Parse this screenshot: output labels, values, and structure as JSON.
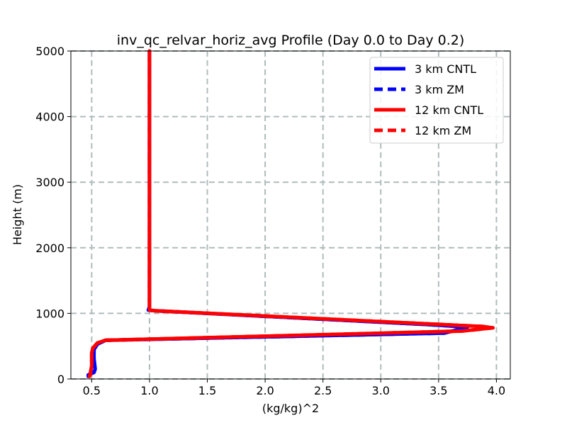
{
  "chart_data": {
    "type": "line",
    "title": "inv_qc_relvar_horiz_avg Profile (Day 0.0 to Day 0.2)",
    "xlabel": "(kg/kg)^2",
    "ylabel": "Height (m)",
    "xlim": [
      0.32,
      4.12
    ],
    "ylim": [
      0,
      5000
    ],
    "xticks": [
      0.5,
      1.0,
      1.5,
      2.0,
      2.5,
      3.0,
      3.5,
      4.0
    ],
    "xtick_labels": [
      "0.5",
      "1.0",
      "1.5",
      "2.0",
      "2.5",
      "3.0",
      "3.5",
      "4.0"
    ],
    "yticks": [
      0,
      1000,
      2000,
      3000,
      4000,
      5000
    ],
    "ytick_labels": [
      "0",
      "1000",
      "2000",
      "3000",
      "4000",
      "5000"
    ],
    "grid": true,
    "legend_position": "top-right",
    "series": [
      {
        "name": "3 km CNTL",
        "color": "#0000ff",
        "style": "solid",
        "points": [
          [
            0.47,
            40
          ],
          [
            0.47,
            60
          ],
          [
            0.52,
            100
          ],
          [
            0.53,
            150
          ],
          [
            0.52,
            300
          ],
          [
            0.52,
            450
          ],
          [
            0.55,
            530
          ],
          [
            0.62,
            590
          ],
          [
            3.55,
            700
          ],
          [
            3.75,
            790
          ],
          [
            3.4,
            830
          ],
          [
            1.05,
            1040
          ],
          [
            0.99,
            1050
          ],
          [
            1.0,
            1100
          ],
          [
            1.0,
            2000
          ],
          [
            1.0,
            3000
          ],
          [
            1.0,
            4000
          ],
          [
            1.0,
            5000
          ]
        ]
      },
      {
        "name": "3 km ZM",
        "color": "#0000ff",
        "style": "dashed",
        "points": [
          [
            0.47,
            40
          ],
          [
            0.47,
            60
          ],
          [
            0.52,
            100
          ],
          [
            0.53,
            150
          ],
          [
            0.52,
            300
          ],
          [
            0.52,
            450
          ],
          [
            0.55,
            530
          ],
          [
            0.62,
            590
          ],
          [
            3.55,
            700
          ],
          [
            3.75,
            790
          ],
          [
            3.4,
            830
          ],
          [
            1.05,
            1040
          ],
          [
            0.99,
            1050
          ],
          [
            1.0,
            1100
          ],
          [
            1.0,
            2000
          ],
          [
            1.0,
            3000
          ],
          [
            1.0,
            4000
          ],
          [
            1.0,
            5000
          ]
        ]
      },
      {
        "name": "12 km CNTL",
        "color": "#ff0000",
        "style": "solid",
        "points": [
          [
            0.48,
            40
          ],
          [
            0.49,
            70
          ],
          [
            0.49,
            100
          ],
          [
            0.5,
            200
          ],
          [
            0.5,
            400
          ],
          [
            0.51,
            470
          ],
          [
            0.55,
            550
          ],
          [
            0.62,
            590
          ],
          [
            3.7,
            730
          ],
          [
            3.97,
            780
          ],
          [
            3.88,
            800
          ],
          [
            1.05,
            1040
          ],
          [
            1.0,
            1050
          ],
          [
            1.0,
            1100
          ],
          [
            1.0,
            2000
          ],
          [
            1.0,
            3000
          ],
          [
            1.0,
            4000
          ],
          [
            1.0,
            5000
          ]
        ]
      },
      {
        "name": "12 km ZM",
        "color": "#ff0000",
        "style": "dashed",
        "points": [
          [
            0.48,
            40
          ],
          [
            0.49,
            70
          ],
          [
            0.49,
            100
          ],
          [
            0.5,
            200
          ],
          [
            0.5,
            400
          ],
          [
            0.51,
            470
          ],
          [
            0.55,
            550
          ],
          [
            0.62,
            590
          ],
          [
            3.7,
            730
          ],
          [
            3.97,
            780
          ],
          [
            3.88,
            800
          ],
          [
            1.05,
            1040
          ],
          [
            1.0,
            1050
          ],
          [
            1.0,
            1100
          ],
          [
            1.0,
            2000
          ],
          [
            1.0,
            3000
          ],
          [
            1.0,
            4000
          ],
          [
            1.0,
            5000
          ]
        ]
      }
    ]
  }
}
